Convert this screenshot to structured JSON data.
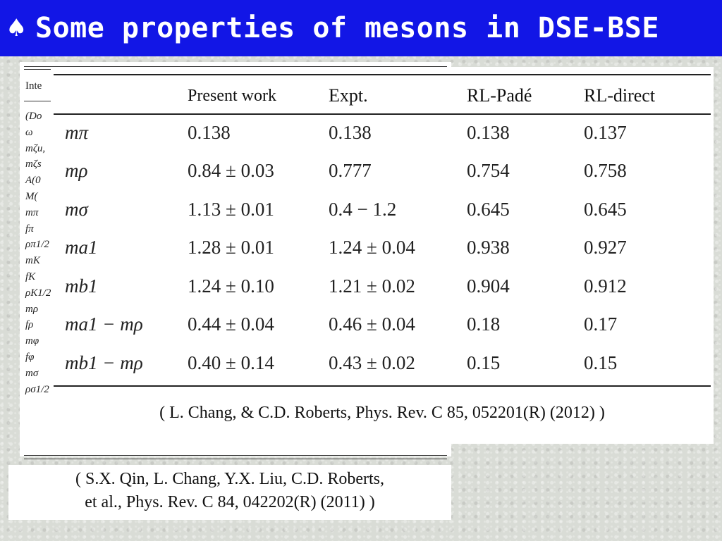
{
  "title": {
    "icon": "spade-icon",
    "text": "Some properties of mesons in DSE-BSE"
  },
  "back_table": {
    "header": "Inte",
    "row_labels": [
      "(Do",
      "ω",
      "mζu,",
      "mζs",
      "A(0",
      "M(",
      "mπ",
      "fπ",
      "ρπ1/2",
      "mK",
      "fK",
      "ρK1/2",
      "mρ",
      "fρ",
      "mφ",
      "fφ",
      "mσ",
      "ρσ1/2"
    ]
  },
  "table": {
    "headers": [
      "",
      "Present work",
      "Expt.",
      "RL-Padé",
      "RL-direct"
    ],
    "rows": [
      [
        "mπ",
        "0.138",
        "0.138",
        "0.138",
        "0.137"
      ],
      [
        "mρ",
        "0.84 ± 0.03",
        "0.777",
        "0.754",
        "0.758"
      ],
      [
        "mσ",
        "1.13 ± 0.01",
        "0.4 − 1.2",
        "0.645",
        "0.645"
      ],
      [
        "ma1",
        "1.28 ± 0.01",
        "1.24 ± 0.04",
        "0.938",
        "0.927"
      ],
      [
        "mb1",
        "1.24 ± 0.10",
        "1.21 ± 0.02",
        "0.904",
        "0.912"
      ],
      [
        "ma1 − mρ",
        "0.44 ± 0.04",
        "0.46 ± 0.04",
        "0.18",
        "0.17"
      ],
      [
        "mb1 − mρ",
        "0.40 ± 0.14",
        "0.43 ± 0.02",
        "0.15",
        "0.15"
      ]
    ]
  },
  "citation_front": "( L. Chang, &  C.D. Roberts, Phys. Rev. C 85, 052201(R)  (2012) )",
  "citation_back": {
    "line1": "( S.X. Qin, L. Chang, Y.X. Liu,  C.D. Roberts,",
    "line2": "et al., Phys. Rev. C 84, 042202(R)  (2011) )"
  }
}
